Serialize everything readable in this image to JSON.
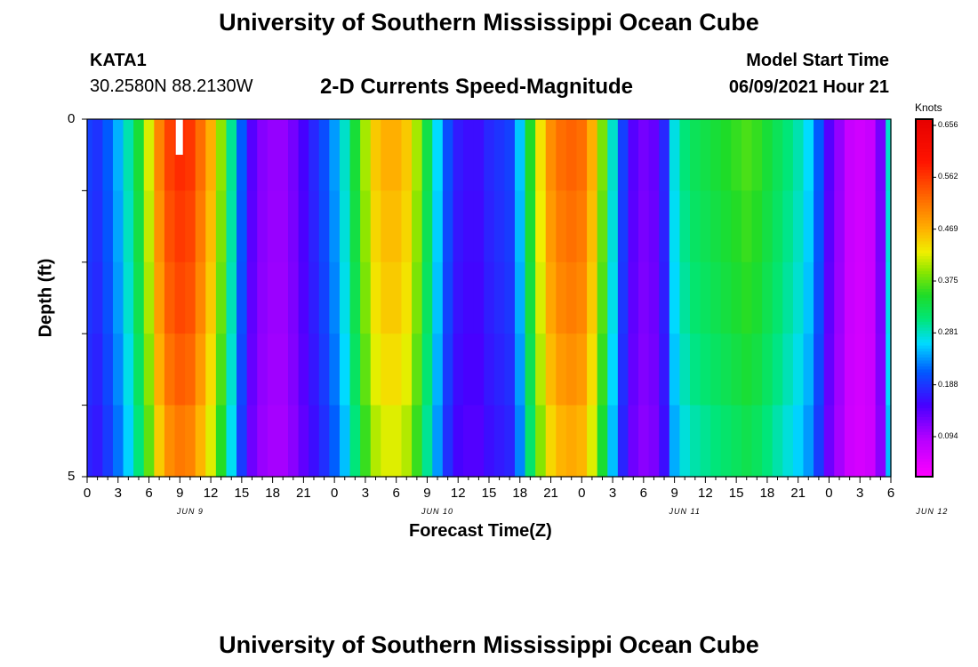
{
  "title_top": "University of Southern Mississippi Ocean Cube",
  "title_bottom": "University of Southern Mississippi Ocean Cube",
  "station": {
    "id": "KATA1",
    "coords": "30.2580N  88.2130W"
  },
  "model": {
    "label": "Model Start Time",
    "value": "06/09/2021 Hour 21"
  },
  "colorbar": {
    "unit": "Knots",
    "ticks": [
      "0.656",
      "0.562",
      "0.469",
      "0.375",
      "0.281",
      "0.188",
      "0.094"
    ]
  },
  "colors": {
    "background": "#ffffff",
    "text": "#000000",
    "missing": "#ffffff"
  },
  "chart_data": {
    "type": "heatmap",
    "title": "2-D Currents Speed-Magnitude",
    "xlabel": "Forecast Time(Z)",
    "ylabel": "Depth (ft)",
    "ylim": [
      0,
      5
    ],
    "y_ticks": [
      "0",
      "5"
    ],
    "x_tick_labels": [
      "0",
      "3",
      "6",
      "9",
      "12",
      "15",
      "18",
      "21",
      "0",
      "3",
      "6",
      "9",
      "12",
      "15",
      "18",
      "21",
      "0",
      "3",
      "6",
      "9",
      "12",
      "15",
      "18",
      "21",
      "0",
      "3",
      "6"
    ],
    "day_labels": [
      "JUN 9",
      "JUN 10",
      "JUN 11",
      "JUN 12"
    ],
    "x_range_hours": [
      0,
      78
    ],
    "value_range": [
      0,
      0.75
    ],
    "time_hours": [
      0,
      1,
      2,
      3,
      4,
      5,
      6,
      7,
      8,
      9,
      10,
      11,
      12,
      13,
      14,
      15,
      16,
      17,
      18,
      19,
      20,
      21,
      22,
      23,
      24,
      25,
      26,
      27,
      28,
      29,
      30,
      31,
      32,
      33,
      34,
      35,
      36,
      37,
      38,
      39,
      40,
      41,
      42,
      43,
      44,
      45,
      46,
      47,
      48,
      49,
      50,
      51,
      52,
      53,
      54,
      55,
      56,
      57,
      58,
      59,
      60,
      61,
      62,
      63,
      64,
      65,
      66,
      67,
      68,
      69,
      70,
      71,
      72,
      73,
      74,
      75,
      76,
      77,
      78
    ],
    "speed_knots_surface": [
      0.2,
      0.19,
      0.22,
      0.26,
      0.31,
      0.37,
      0.46,
      0.56,
      0.62,
      0.64,
      0.63,
      0.58,
      0.52,
      0.43,
      0.32,
      0.22,
      0.14,
      0.11,
      0.1,
      0.1,
      0.12,
      0.15,
      0.18,
      0.21,
      0.25,
      0.3,
      0.37,
      0.44,
      0.5,
      0.52,
      0.52,
      0.5,
      0.44,
      0.36,
      0.28,
      0.21,
      0.17,
      0.16,
      0.16,
      0.18,
      0.19,
      0.2,
      0.27,
      0.38,
      0.48,
      0.55,
      0.58,
      0.59,
      0.58,
      0.52,
      0.42,
      0.3,
      0.2,
      0.14,
      0.12,
      0.13,
      0.18,
      0.29,
      0.33,
      0.35,
      0.36,
      0.37,
      0.38,
      0.39,
      0.4,
      0.39,
      0.37,
      0.35,
      0.33,
      0.31,
      0.28,
      0.22,
      0.14,
      0.1,
      0.06,
      0.05,
      0.06,
      0.12,
      0.3
    ],
    "depth_factor": [
      1.0,
      0.98,
      0.96,
      0.93,
      0.89
    ]
  }
}
